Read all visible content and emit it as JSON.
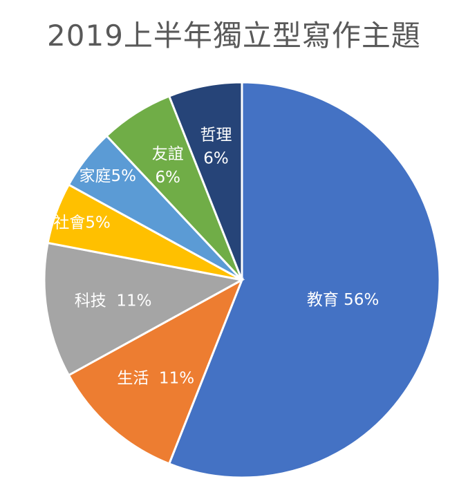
{
  "chart_data": {
    "type": "pie",
    "title": "2019上半年獨立型寫作主題",
    "slices": [
      {
        "label": "教育 56%",
        "value": 56,
        "color": "#4472C4"
      },
      {
        "label": "生活  11%",
        "value": 11,
        "color": "#ED7D31"
      },
      {
        "label": "科技  11%",
        "value": 11,
        "color": "#A5A5A5"
      },
      {
        "label": "社會5%",
        "value": 5,
        "color": "#FFC000"
      },
      {
        "label": "家庭5%",
        "value": 5,
        "color": "#5B9BD5"
      },
      {
        "label": "友誼 6%",
        "value": 6,
        "color": "#70AD47"
      },
      {
        "label": "哲理 6%",
        "value": 6,
        "color": "#264478"
      }
    ]
  }
}
